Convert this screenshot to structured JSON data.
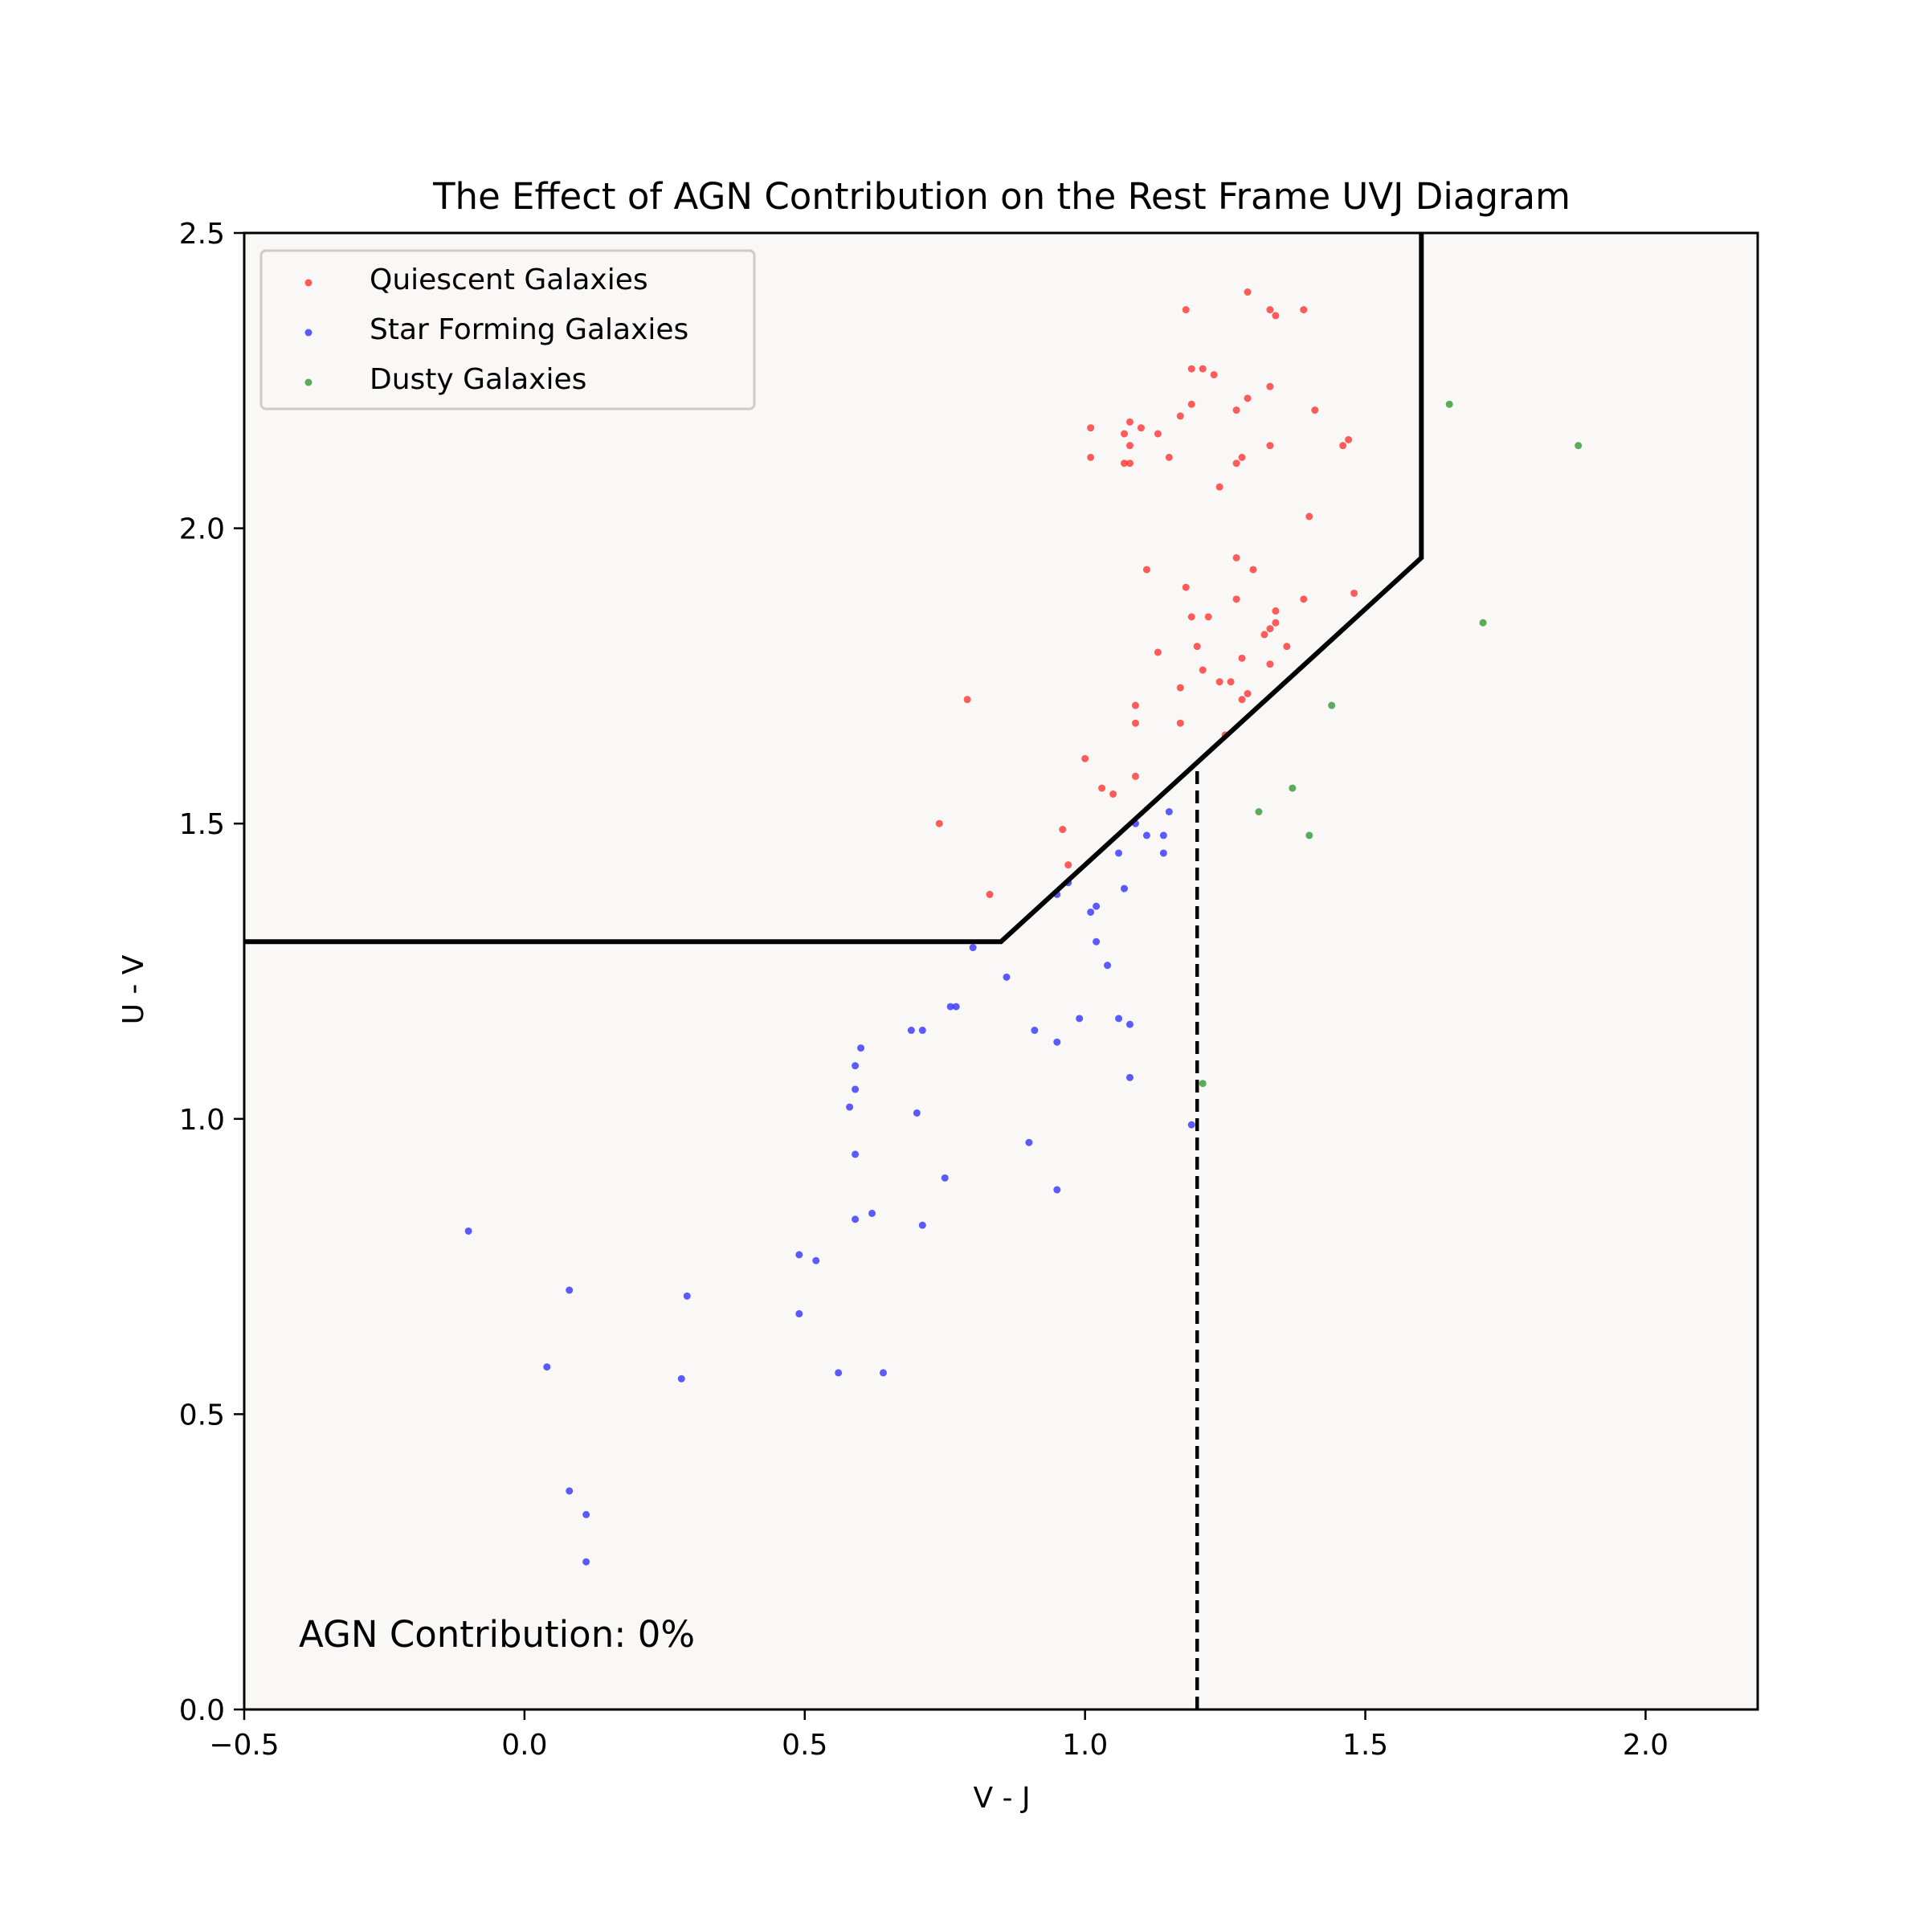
{
  "chart_data": {
    "type": "scatter",
    "title": "The Effect of AGN Contribution on the Rest Frame UVJ Diagram",
    "xlabel": "V - J",
    "ylabel": "U - V",
    "xlim": [
      -0.5,
      2.2
    ],
    "ylim": [
      0.0,
      2.5
    ],
    "x_ticks": [
      -0.5,
      0.0,
      0.5,
      1.0,
      1.5,
      2.0
    ],
    "x_tick_labels": [
      "−0.5",
      "0.0",
      "0.5",
      "1.0",
      "1.5",
      "2.0"
    ],
    "y_ticks": [
      0.0,
      0.5,
      1.0,
      1.5,
      2.0,
      2.5
    ],
    "y_tick_labels": [
      "0.0",
      "0.5",
      "1.0",
      "1.5",
      "2.0",
      "2.5"
    ],
    "grid": false,
    "legend_position": "upper-left",
    "annotation": "AGN Contribution: 0%",
    "plot_background": "#f9f8f6",
    "series": [
      {
        "name": "Quiescent Galaxies",
        "color": "#ff3333",
        "points": [
          [
            1.18,
            2.37
          ],
          [
            1.29,
            2.4
          ],
          [
            1.33,
            2.37
          ],
          [
            1.34,
            2.36
          ],
          [
            1.39,
            2.37
          ],
          [
            1.19,
            2.27
          ],
          [
            1.21,
            2.27
          ],
          [
            1.23,
            2.26
          ],
          [
            1.33,
            2.24
          ],
          [
            1.29,
            2.22
          ],
          [
            1.19,
            2.21
          ],
          [
            1.41,
            2.2
          ],
          [
            1.27,
            2.2
          ],
          [
            1.17,
            2.19
          ],
          [
            1.01,
            2.17
          ],
          [
            1.07,
            2.16
          ],
          [
            1.08,
            2.18
          ],
          [
            1.1,
            2.17
          ],
          [
            1.13,
            2.16
          ],
          [
            1.08,
            2.14
          ],
          [
            1.47,
            2.15
          ],
          [
            1.46,
            2.14
          ],
          [
            1.33,
            2.14
          ],
          [
            1.01,
            2.12
          ],
          [
            1.15,
            2.12
          ],
          [
            1.28,
            2.12
          ],
          [
            1.27,
            2.11
          ],
          [
            1.07,
            2.11
          ],
          [
            1.08,
            2.11
          ],
          [
            1.24,
            2.07
          ],
          [
            1.4,
            2.02
          ],
          [
            1.27,
            1.95
          ],
          [
            1.3,
            1.93
          ],
          [
            1.11,
            1.93
          ],
          [
            1.18,
            1.9
          ],
          [
            1.48,
            1.89
          ],
          [
            1.39,
            1.88
          ],
          [
            1.27,
            1.88
          ],
          [
            1.34,
            1.86
          ],
          [
            1.22,
            1.85
          ],
          [
            1.19,
            1.85
          ],
          [
            1.34,
            1.84
          ],
          [
            1.33,
            1.83
          ],
          [
            1.32,
            1.82
          ],
          [
            1.2,
            1.8
          ],
          [
            1.36,
            1.8
          ],
          [
            1.13,
            1.79
          ],
          [
            1.28,
            1.78
          ],
          [
            1.33,
            1.77
          ],
          [
            1.21,
            1.76
          ],
          [
            1.24,
            1.74
          ],
          [
            1.26,
            1.74
          ],
          [
            1.17,
            1.73
          ],
          [
            1.29,
            1.72
          ],
          [
            1.28,
            1.71
          ],
          [
            0.79,
            1.71
          ],
          [
            1.09,
            1.7
          ],
          [
            1.17,
            1.67
          ],
          [
            1.09,
            1.67
          ],
          [
            1.25,
            1.65
          ],
          [
            1.0,
            1.61
          ],
          [
            1.09,
            1.58
          ],
          [
            1.03,
            1.56
          ],
          [
            1.05,
            1.55
          ],
          [
            0.74,
            1.5
          ],
          [
            0.96,
            1.49
          ],
          [
            0.97,
            1.43
          ],
          [
            0.83,
            1.38
          ]
        ]
      },
      {
        "name": "Star Forming Galaxies",
        "color": "#3333ff",
        "points": [
          [
            1.15,
            1.52
          ],
          [
            1.09,
            1.5
          ],
          [
            1.11,
            1.48
          ],
          [
            1.14,
            1.48
          ],
          [
            1.06,
            1.45
          ],
          [
            1.14,
            1.45
          ],
          [
            0.97,
            1.4
          ],
          [
            0.95,
            1.38
          ],
          [
            1.07,
            1.39
          ],
          [
            1.02,
            1.36
          ],
          [
            1.01,
            1.35
          ],
          [
            1.02,
            1.3
          ],
          [
            0.8,
            1.29
          ],
          [
            1.04,
            1.26
          ],
          [
            0.86,
            1.24
          ],
          [
            0.76,
            1.19
          ],
          [
            0.77,
            1.19
          ],
          [
            0.99,
            1.17
          ],
          [
            1.06,
            1.17
          ],
          [
            1.08,
            1.16
          ],
          [
            0.69,
            1.15
          ],
          [
            0.71,
            1.15
          ],
          [
            0.91,
            1.15
          ],
          [
            0.95,
            1.13
          ],
          [
            0.6,
            1.12
          ],
          [
            0.59,
            1.09
          ],
          [
            1.08,
            1.07
          ],
          [
            0.59,
            1.05
          ],
          [
            0.58,
            1.02
          ],
          [
            0.7,
            1.01
          ],
          [
            1.19,
            0.99
          ],
          [
            0.9,
            0.96
          ],
          [
            0.59,
            0.94
          ],
          [
            0.75,
            0.9
          ],
          [
            0.95,
            0.88
          ],
          [
            0.62,
            0.84
          ],
          [
            0.59,
            0.83
          ],
          [
            0.71,
            0.82
          ],
          [
            -0.1,
            0.81
          ],
          [
            0.49,
            0.77
          ],
          [
            0.52,
            0.76
          ],
          [
            0.08,
            0.71
          ],
          [
            0.29,
            0.7
          ],
          [
            0.49,
            0.67
          ],
          [
            0.04,
            0.58
          ],
          [
            0.56,
            0.57
          ],
          [
            0.64,
            0.57
          ],
          [
            0.28,
            0.56
          ],
          [
            0.08,
            0.37
          ],
          [
            0.11,
            0.33
          ],
          [
            0.11,
            0.25
          ]
        ]
      },
      {
        "name": "Dusty Galaxies",
        "color": "#339933",
        "points": [
          [
            1.65,
            2.21
          ],
          [
            1.88,
            2.14
          ],
          [
            1.71,
            1.84
          ],
          [
            1.44,
            1.7
          ],
          [
            1.37,
            1.56
          ],
          [
            1.31,
            1.52
          ],
          [
            1.4,
            1.48
          ],
          [
            1.21,
            1.06
          ]
        ]
      }
    ],
    "selection_boundary": [
      [
        -0.5,
        1.3
      ],
      [
        0.85,
        1.3
      ],
      [
        1.6,
        1.95
      ],
      [
        1.6,
        2.5
      ]
    ],
    "dashed_line": [
      [
        1.2,
        0.0
      ],
      [
        1.2,
        1.59
      ]
    ]
  }
}
